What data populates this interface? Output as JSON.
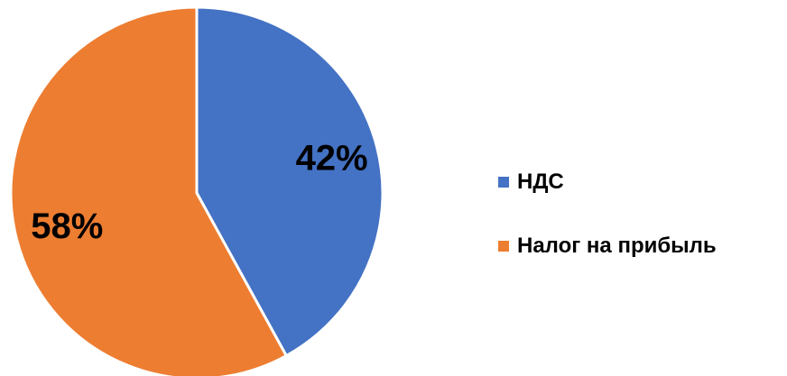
{
  "chart_data": {
    "type": "pie",
    "categories": [
      "НДС",
      "Налог на прибыль"
    ],
    "values": [
      42,
      58
    ],
    "labels": [
      "42%",
      "58%"
    ],
    "colors": [
      "#4472C4",
      "#ED7D31"
    ],
    "start_angle_deg": 0,
    "direction": "clockwise",
    "legend_position": "right",
    "slice_border_color": "#ffffff"
  }
}
